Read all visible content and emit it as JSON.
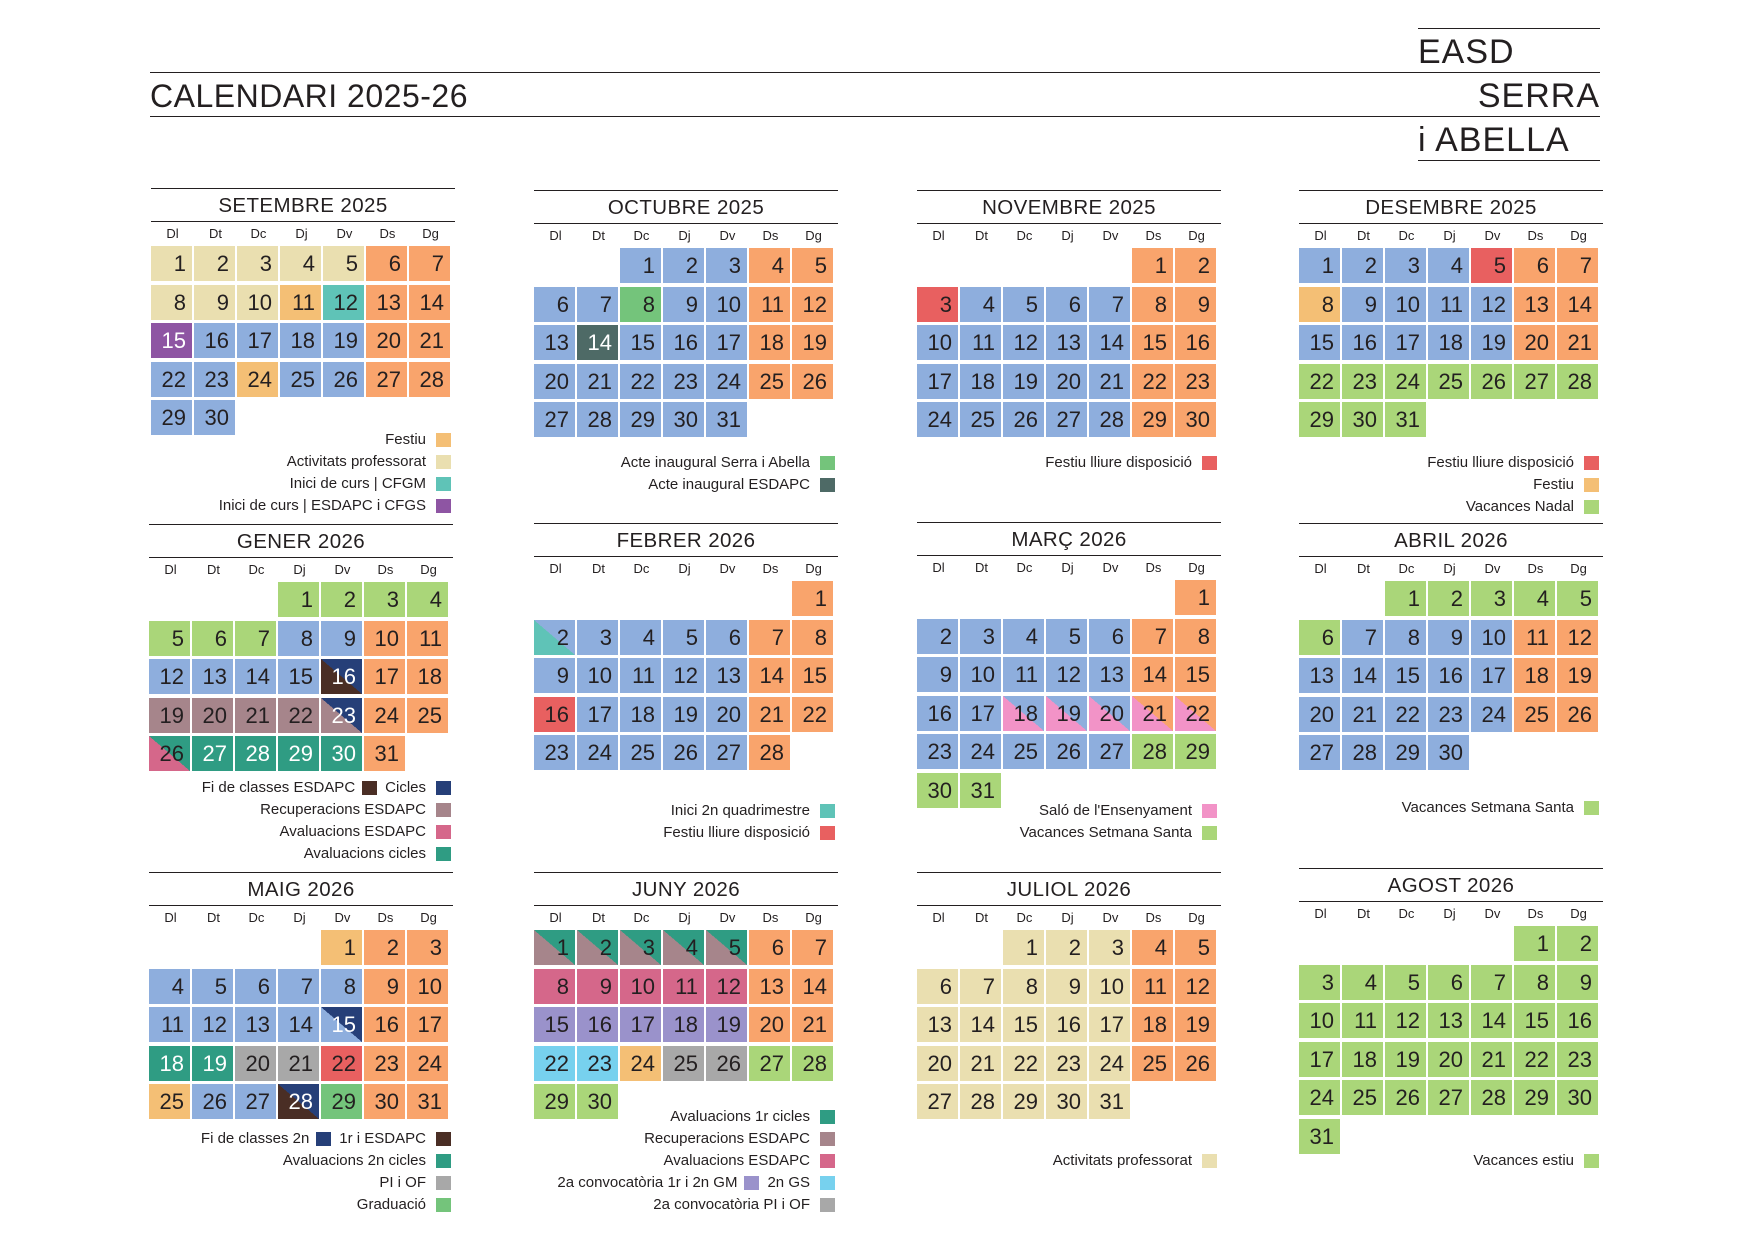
{
  "header": {
    "title": "CALENDARI 2025-26",
    "brand": [
      "EASD",
      "SERRA",
      "i ABELLA"
    ]
  },
  "weekdays": [
    "Dl",
    "Dt",
    "Dc",
    "Dj",
    "Dv",
    "Ds",
    "Dg"
  ],
  "colors": {
    "B": "#8eaedd",
    "F": "#f9a46c",
    "A": "#eadfb0",
    "P": "#f4bf75",
    "T": "#5fc3b7",
    "U": "#8e55a3",
    "G": "#74c47b",
    "D": "#4e6a66",
    "R": "#e86060",
    "V": "#aad679",
    "M": "#a6858b",
    "E": "#2f9c83",
    "N": "#263f78",
    "K": "#4a2e25",
    "X": "#a8a8a8",
    "Y": "#d5678a",
    "L": "#9a92cb",
    "C": "#77d1ee",
    "Q": "#f293c7"
  },
  "months": [
    {
      "title": "SETEMBRE 2025",
      "offset": 0,
      "colors": [
        "A",
        "A",
        "A",
        "A",
        "A",
        "F",
        "F",
        "A",
        "A",
        "A",
        "P",
        "T",
        "F",
        "F",
        "U",
        "B",
        "B",
        "B",
        "B",
        "F",
        "F",
        "B",
        "B",
        "P",
        "B",
        "B",
        "F",
        "F",
        "B",
        "B"
      ]
    },
    {
      "title": "OCTUBRE 2025",
      "offset": 2,
      "colors": [
        "B",
        "B",
        "B",
        "F",
        "F",
        "B",
        "B",
        "G",
        "B",
        "B",
        "F",
        "F",
        "B",
        "D",
        "B",
        "B",
        "B",
        "F",
        "F",
        "B",
        "B",
        "B",
        "B",
        "B",
        "F",
        "F",
        "B",
        "B",
        "B",
        "B",
        "B"
      ]
    },
    {
      "title": "NOVEMBRE 2025",
      "offset": 5,
      "colors": [
        "F",
        "F",
        "R",
        "B",
        "B",
        "B",
        "B",
        "F",
        "F",
        "B",
        "B",
        "B",
        "B",
        "B",
        "F",
        "F",
        "B",
        "B",
        "B",
        "B",
        "B",
        "F",
        "F",
        "B",
        "B",
        "B",
        "B",
        "B",
        "F",
        "F"
      ]
    },
    {
      "title": "DESEMBRE 2025",
      "offset": 0,
      "colors": [
        "B",
        "B",
        "B",
        "B",
        "R",
        "F",
        "F",
        "P",
        "B",
        "B",
        "B",
        "B",
        "F",
        "F",
        "B",
        "B",
        "B",
        "B",
        "B",
        "F",
        "F",
        "V",
        "V",
        "V",
        "V",
        "V",
        "V",
        "V",
        "V",
        "V",
        "V"
      ]
    },
    {
      "title": "GENER 2026",
      "offset": 3,
      "colors": [
        "V",
        "V",
        "V",
        "V",
        "V",
        "V",
        "V",
        "B",
        "B",
        "F",
        "F",
        "B",
        "B",
        "B",
        "B",
        "K/N",
        "F",
        "F",
        "M",
        "M",
        "M",
        "M",
        "M/N",
        "F",
        "F",
        "Y/E",
        "E",
        "E",
        "E",
        "E",
        "F"
      ]
    },
    {
      "title": "FEBRER 2026",
      "offset": 6,
      "colors": [
        "F",
        "T/B",
        "B",
        "B",
        "B",
        "B",
        "F",
        "F",
        "B",
        "B",
        "B",
        "B",
        "B",
        "F",
        "F",
        "R",
        "B",
        "B",
        "B",
        "B",
        "F",
        "F",
        "B",
        "B",
        "B",
        "B",
        "B",
        "F"
      ]
    },
    {
      "title": "MARÇ 2026",
      "offset": 6,
      "colors": [
        "F",
        "B",
        "B",
        "B",
        "B",
        "B",
        "F",
        "F",
        "B",
        "B",
        "B",
        "B",
        "B",
        "F",
        "F",
        "B",
        "B",
        "Q/B",
        "Q/B",
        "Q/B",
        "Q/F",
        "Q/F",
        "B",
        "B",
        "B",
        "B",
        "B",
        "V",
        "V",
        "V",
        "V"
      ]
    },
    {
      "title": "ABRIL 2026",
      "offset": 2,
      "colors": [
        "V",
        "V",
        "V",
        "V",
        "V",
        "V",
        "B",
        "B",
        "B",
        "B",
        "F",
        "F",
        "B",
        "B",
        "B",
        "B",
        "B",
        "F",
        "F",
        "B",
        "B",
        "B",
        "B",
        "B",
        "F",
        "F",
        "B",
        "B",
        "B",
        "B"
      ]
    },
    {
      "title": "MAIG 2026",
      "offset": 4,
      "colors": [
        "P",
        "F",
        "F",
        "B",
        "B",
        "B",
        "B",
        "B",
        "F",
        "F",
        "B",
        "B",
        "B",
        "B",
        "B/N",
        "F",
        "F",
        "E",
        "E",
        "X",
        "X",
        "R",
        "F",
        "F",
        "P",
        "B",
        "B",
        "K/N",
        "G",
        "F",
        "F"
      ]
    },
    {
      "title": "JUNY 2026",
      "offset": 0,
      "colors": [
        "M/E",
        "M/E",
        "M/E",
        "M/E",
        "M/E",
        "F",
        "F",
        "Y",
        "Y",
        "Y",
        "Y",
        "Y",
        "F",
        "F",
        "L",
        "L",
        "L",
        "L",
        "L",
        "F",
        "F",
        "C",
        "C",
        "P",
        "X",
        "X",
        "V",
        "V",
        "V",
        "V"
      ]
    },
    {
      "title": "JULIOL 2026",
      "offset": 2,
      "colors": [
        "A",
        "A",
        "A",
        "F",
        "F",
        "A",
        "A",
        "A",
        "A",
        "A",
        "F",
        "F",
        "A",
        "A",
        "A",
        "A",
        "A",
        "F",
        "F",
        "A",
        "A",
        "A",
        "A",
        "A",
        "F",
        "F",
        "A",
        "A",
        "A",
        "A",
        "A"
      ]
    },
    {
      "title": "AGOST 2026",
      "offset": 5,
      "colors": [
        "V",
        "V",
        "V",
        "V",
        "V",
        "V",
        "V",
        "V",
        "V",
        "V",
        "V",
        "V",
        "V",
        "V",
        "V",
        "V",
        "V",
        "V",
        "V",
        "V",
        "V",
        "V",
        "V",
        "V",
        "V",
        "V",
        "V",
        "V",
        "V",
        "V",
        "V"
      ]
    }
  ],
  "legends": [
    {
      "items": [
        {
          "text": "Festiu",
          "color": "#f4bf75"
        },
        {
          "text": "Activitats professorat",
          "color": "#eadfb0"
        },
        {
          "text": "Inici de curs | CFGM",
          "color": "#5fc3b7"
        },
        {
          "text": "Inici de curs | ESDAPC i CFGS",
          "color": "#8e55a3"
        }
      ]
    },
    {
      "items": [
        {
          "text": "Acte inaugural Serra i Abella",
          "color": "#74c47b"
        },
        {
          "text": "Acte inaugural ESDAPC",
          "color": "#4e6a66"
        }
      ]
    },
    {
      "items": [
        {
          "text": "Festiu lliure disposició",
          "color": "#e86060"
        }
      ]
    },
    {
      "items": [
        {
          "text": "Festiu lliure disposició",
          "color": "#e86060"
        },
        {
          "text": "Festiu",
          "color": "#f4bf75"
        },
        {
          "text": "Vacances Nadal",
          "color": "#aad679"
        }
      ]
    },
    {
      "items": [
        {
          "text": "Fi de classes ESDAPC",
          "color": "#4a2e25",
          "text2": "Cicles",
          "color2": "#263f78"
        },
        {
          "text": "Recuperacions ESDAPC",
          "color": "#a6858b"
        },
        {
          "text": "Avaluacions ESDAPC",
          "color": "#d5678a"
        },
        {
          "text": "Avaluacions cicles",
          "color": "#2f9c83"
        }
      ]
    },
    {
      "items": [
        {
          "text": "Inici 2n quadrimestre",
          "color": "#5fc3b7"
        },
        {
          "text": "Festiu lliure disposició",
          "color": "#e86060"
        }
      ]
    },
    {
      "items": [
        {
          "text": "Saló de l'Ensenyament",
          "color": "#f293c7"
        },
        {
          "text": "Vacances Setmana Santa",
          "color": "#aad679"
        }
      ]
    },
    {
      "items": [
        {
          "text": "Vacances Setmana Santa",
          "color": "#aad679"
        }
      ]
    },
    {
      "items": [
        {
          "text": "Fi de classes 2n",
          "color": "#263f78",
          "text2": "1r i ESDAPC",
          "color2": "#4a2e25"
        },
        {
          "text": "Avaluacions 2n cicles",
          "color": "#2f9c83"
        },
        {
          "text": "PI i OF",
          "color": "#a8a8a8"
        },
        {
          "text": "Graduació",
          "color": "#74c47b"
        }
      ]
    },
    {
      "items": [
        {
          "text": "Avaluacions 1r cicles",
          "color": "#2f9c83"
        },
        {
          "text": "Recuperacions ESDAPC",
          "color": "#a6858b"
        },
        {
          "text": "Avaluacions ESDAPC",
          "color": "#d5678a"
        },
        {
          "text": "2a convocatòria 1r i 2n GM",
          "color": "#9a92cb",
          "text2": "2n GS",
          "color2": "#77d1ee"
        },
        {
          "text": "2a convocatòria PI i OF",
          "color": "#a8a8a8"
        }
      ]
    },
    {
      "items": [
        {
          "text": "Activitats professorat",
          "color": "#eadfb0"
        }
      ]
    },
    {
      "items": [
        {
          "text": "Vacances estiu",
          "color": "#aad679"
        }
      ]
    }
  ]
}
